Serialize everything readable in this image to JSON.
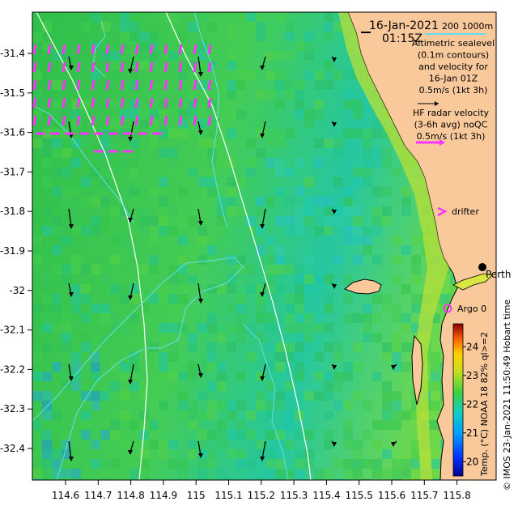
{
  "map": {
    "date": "16-Jan-2021",
    "time": "01:15Z",
    "scale_label": "200  1000m",
    "altimetry_note": [
      "Altimetric sealevel",
      "(0.1m contours)",
      "and velocity for",
      "16-Jan 01Z",
      "0.5m/s (1kt 3h)"
    ],
    "radar_note": [
      "HF radar velocity",
      "(3-6h avg) noQC",
      "0.5m/s (1kt 3h)"
    ],
    "drifter_label": "drifter",
    "city_label": "Perth",
    "argo_label": "Argo 0",
    "credit": "© IMOS 23-Jan-2021 11:50:49 Hobart time",
    "lat_ticks": [
      "-31.4",
      "-31.5",
      "-31.6",
      "-31.7",
      "-31.8",
      "-31.9",
      "-32",
      "-32.1",
      "-32.2",
      "-32.3",
      "-32.4"
    ],
    "lon_ticks": [
      "114.6",
      "114.7",
      "114.8",
      "114.9",
      "115",
      "115.1",
      "115.2",
      "115.3",
      "115.4",
      "115.5",
      "115.6",
      "115.7",
      "115.8"
    ]
  },
  "colorbar": {
    "title": "Temp. (°C) NOAA 18 82% ql>=2",
    "ticks": [
      "24",
      "23",
      "22",
      "21",
      "20"
    ],
    "range": [
      19.5,
      24.8
    ]
  },
  "colors": {
    "land": "#f9c89b",
    "radar_arrow": "#ff33ff",
    "alt_arrow": "#000000",
    "contour": "#66ddee",
    "isobath": "#ffffff"
  }
}
